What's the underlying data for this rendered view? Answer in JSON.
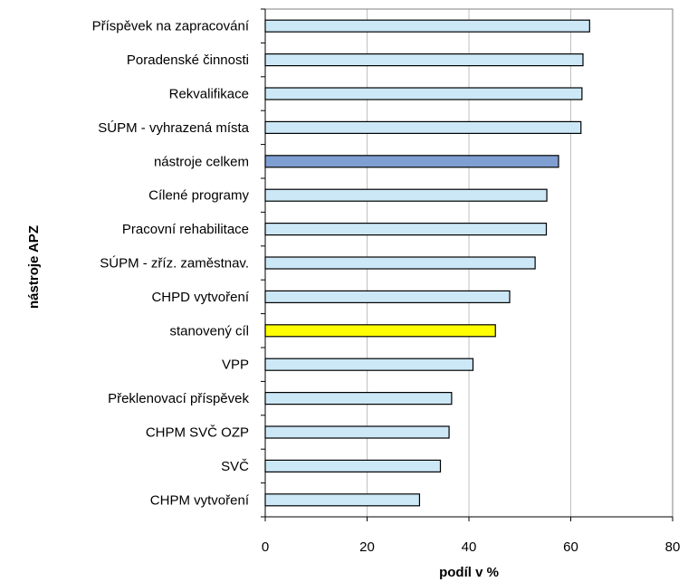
{
  "chart_data": {
    "type": "bar",
    "orientation": "horizontal",
    "xlabel": "podíl v %",
    "ylabel": "nástroje APZ",
    "xlim": [
      0,
      80
    ],
    "xticks": [
      0,
      20,
      40,
      60,
      80
    ],
    "grid": "vertical",
    "categories": [
      "Příspěvek na zapracování",
      "Poradenské činnosti",
      "Rekvalifikace",
      "SÚPM - vyhrazená místa",
      "nástroje celkem",
      "Cílené programy",
      "Pracovní rehabilitace",
      "SÚPM - zříz. zaměstnav.",
      "CHPD vytvoření",
      "stanovený cíl",
      "VPP",
      "Překlenovací příspěvek",
      "CHPM SVČ OZP",
      "SVČ",
      "CHPM vytvoření"
    ],
    "values": [
      63.7,
      62.4,
      62.2,
      62.0,
      57.6,
      55.3,
      55.2,
      53.0,
      48.0,
      45.2,
      40.8,
      36.6,
      36.1,
      34.4,
      30.3
    ],
    "colors": [
      "#cce8f7",
      "#cce8f7",
      "#cce8f7",
      "#cce8f7",
      "#7f9fd2",
      "#cce8f7",
      "#cce8f7",
      "#cce8f7",
      "#cce8f7",
      "#ffff00",
      "#cce8f7",
      "#cce8f7",
      "#cce8f7",
      "#cce8f7",
      "#cce8f7"
    ]
  }
}
